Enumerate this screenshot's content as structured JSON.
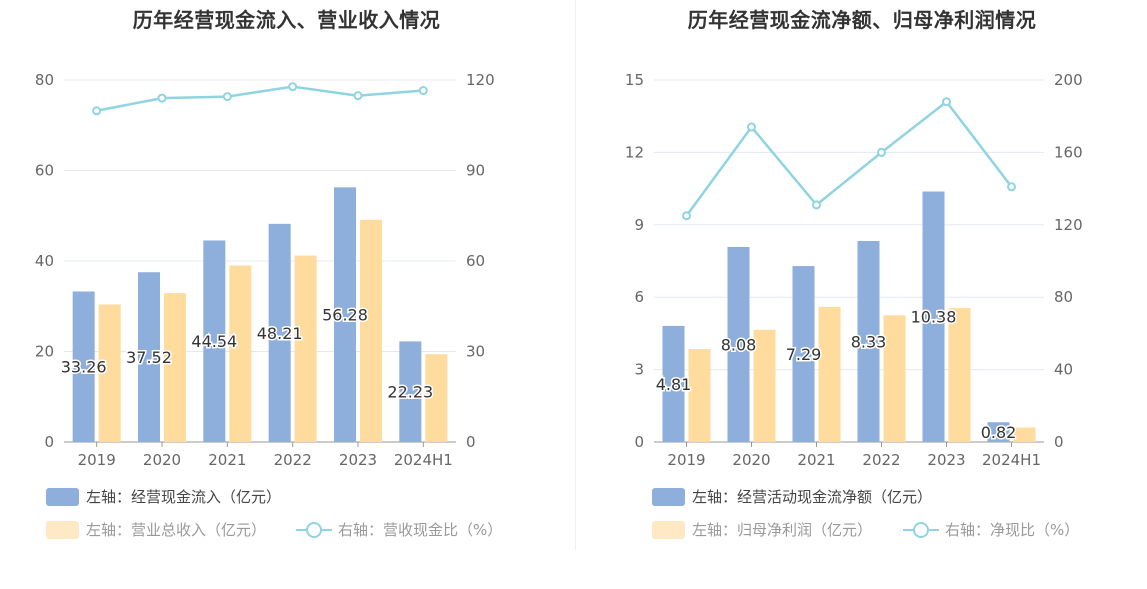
{
  "colors": {
    "bar_primary": "#8eaedb",
    "bar_secondary": "#ffdb9e",
    "line": "#8fd4e0",
    "grid": "#e3e8f3",
    "axis_text": "#666666",
    "legend_dim": "#999999"
  },
  "chart_data": [
    {
      "type": "bar+line",
      "title": "历年经营现金流入、营业收入情况",
      "categories": [
        "2019",
        "2020",
        "2021",
        "2022",
        "2023",
        "2024H1"
      ],
      "left_axis": {
        "ylim": [
          0,
          80
        ],
        "ticks": [
          "0",
          "20",
          "40",
          "60",
          "80"
        ]
      },
      "right_axis": {
        "ylim": [
          0,
          120
        ],
        "ticks": [
          "0",
          "30",
          "60",
          "90",
          "120"
        ]
      },
      "series": [
        {
          "name": "左轴：经营现金流入（亿元）",
          "axis": "left",
          "kind": "bar",
          "values": [
            33.26,
            37.52,
            44.54,
            48.21,
            56.28,
            22.23
          ],
          "labels": [
            "33.26",
            "37.52",
            "44.54",
            "48.21",
            "56.28",
            "22.23"
          ]
        },
        {
          "name": "左轴：营业总收入（亿元）",
          "axis": "left",
          "kind": "bar",
          "values": [
            30.4,
            32.9,
            39.0,
            41.2,
            49.1,
            19.4
          ]
        },
        {
          "name": "右轴：营收现金比（%）",
          "axis": "right",
          "kind": "line",
          "values": [
            109.8,
            114.0,
            114.5,
            117.8,
            114.8,
            116.5
          ]
        }
      ]
    },
    {
      "type": "bar+line",
      "title": "历年经营现金流净额、归母净利润情况",
      "categories": [
        "2019",
        "2020",
        "2021",
        "2022",
        "2023",
        "2024H1"
      ],
      "left_axis": {
        "ylim": [
          0,
          15
        ],
        "ticks": [
          "0",
          "3",
          "6",
          "9",
          "12",
          "15"
        ]
      },
      "right_axis": {
        "ylim": [
          0,
          200
        ],
        "ticks": [
          "0",
          "40",
          "80",
          "120",
          "160",
          "200"
        ]
      },
      "series": [
        {
          "name": "左轴：经营活动现金流净额（亿元）",
          "axis": "left",
          "kind": "bar",
          "values": [
            4.81,
            8.08,
            7.29,
            8.33,
            10.38,
            0.82
          ],
          "labels": [
            "4.81",
            "8.08",
            "7.29",
            "8.33",
            "10.38",
            "0.82"
          ]
        },
        {
          "name": "左轴：归母净利润（亿元）",
          "axis": "left",
          "kind": "bar",
          "values": [
            3.85,
            4.65,
            5.6,
            5.25,
            5.55,
            0.6
          ]
        },
        {
          "name": "右轴：净现比（%）",
          "axis": "right",
          "kind": "line",
          "values": [
            125,
            174,
            131,
            160,
            188,
            141
          ]
        }
      ]
    }
  ]
}
